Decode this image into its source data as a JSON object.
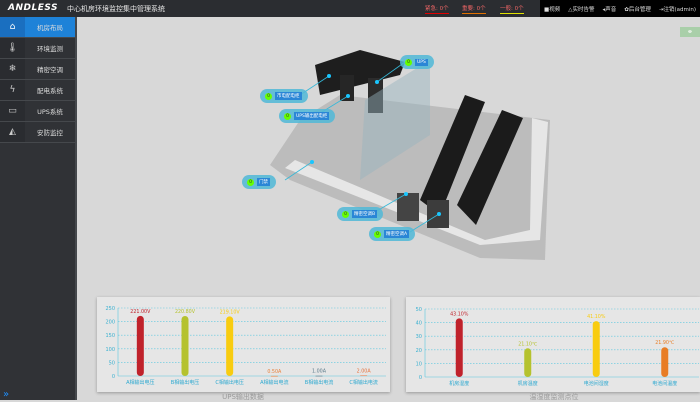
{
  "header": {
    "logo": "ANDLESS",
    "title": "中心机房环境监控集中管理系统",
    "alarms": [
      {
        "label": "紧急: 0个",
        "color": "#e00000"
      },
      {
        "label": "重要: 0个",
        "color": "#e07000"
      },
      {
        "label": "一般: 0个",
        "color": "#e0e000"
      }
    ],
    "actions": [
      {
        "icon": "video-icon",
        "label": "视频"
      },
      {
        "icon": "bell-icon",
        "label": "实时告警"
      },
      {
        "icon": "speaker-icon",
        "label": "声音"
      },
      {
        "icon": "gear-icon",
        "label": "后台管理"
      },
      {
        "icon": "logout-icon",
        "label": "注销(admin)"
      }
    ]
  },
  "sidebar": {
    "items": [
      {
        "icon": "home-icon",
        "label": "机房布局",
        "active": true
      },
      {
        "icon": "thermometer-icon",
        "label": "环境监测"
      },
      {
        "icon": "snowflake-icon",
        "label": "精密空调"
      },
      {
        "icon": "lightning-icon",
        "label": "配电系统"
      },
      {
        "icon": "battery-icon",
        "label": "UPS系统"
      },
      {
        "icon": "camera-icon",
        "label": "安防监控"
      }
    ]
  },
  "room": {
    "tags": [
      {
        "count": "0",
        "label": "UPS"
      },
      {
        "count": "0",
        "label": "市电配电柜"
      },
      {
        "count": "0",
        "label": "UPS输出配电柜"
      },
      {
        "count": "0",
        "label": "门禁"
      },
      {
        "count": "0",
        "label": "精密空调B"
      },
      {
        "count": "0",
        "label": "精密空调A"
      }
    ]
  },
  "chart_data": [
    {
      "type": "bar",
      "title": "UPS输出数据",
      "categories": [
        "A相输出电压",
        "B相输出电压",
        "C相输出电压",
        "A相输出电流",
        "B相输出电流",
        "C相输出电流"
      ],
      "values": [
        221.0,
        220.8,
        219.1,
        0.5,
        1.0,
        2.0
      ],
      "data_labels": [
        "221.00V",
        "220.80V",
        "219.10V",
        "0.50A",
        "1.00A",
        "2.00A"
      ],
      "colors": [
        "#c0222b",
        "#b5c22e",
        "#f8cc10",
        "#e8803a",
        "#5a7a8a",
        "#e8703a"
      ],
      "ylim": [
        0,
        250
      ],
      "yticks": [
        0,
        50,
        100,
        150,
        200,
        250
      ],
      "grid": true
    },
    {
      "type": "bar",
      "title": "温湿度监测点位",
      "categories": [
        "机房湿度",
        "机房温度",
        "电池间湿度",
        "电池间温度"
      ],
      "values": [
        43.1,
        21.1,
        41.1,
        21.9
      ],
      "data_labels": [
        "43.10%",
        "21.10℃",
        "41.10%",
        "21.90℃"
      ],
      "colors": [
        "#c0222b",
        "#b5c22e",
        "#f8cc10",
        "#e87d25"
      ],
      "ylim": [
        0,
        50
      ],
      "yticks": [
        0,
        10,
        20,
        30,
        40,
        50
      ],
      "grid": true
    }
  ]
}
